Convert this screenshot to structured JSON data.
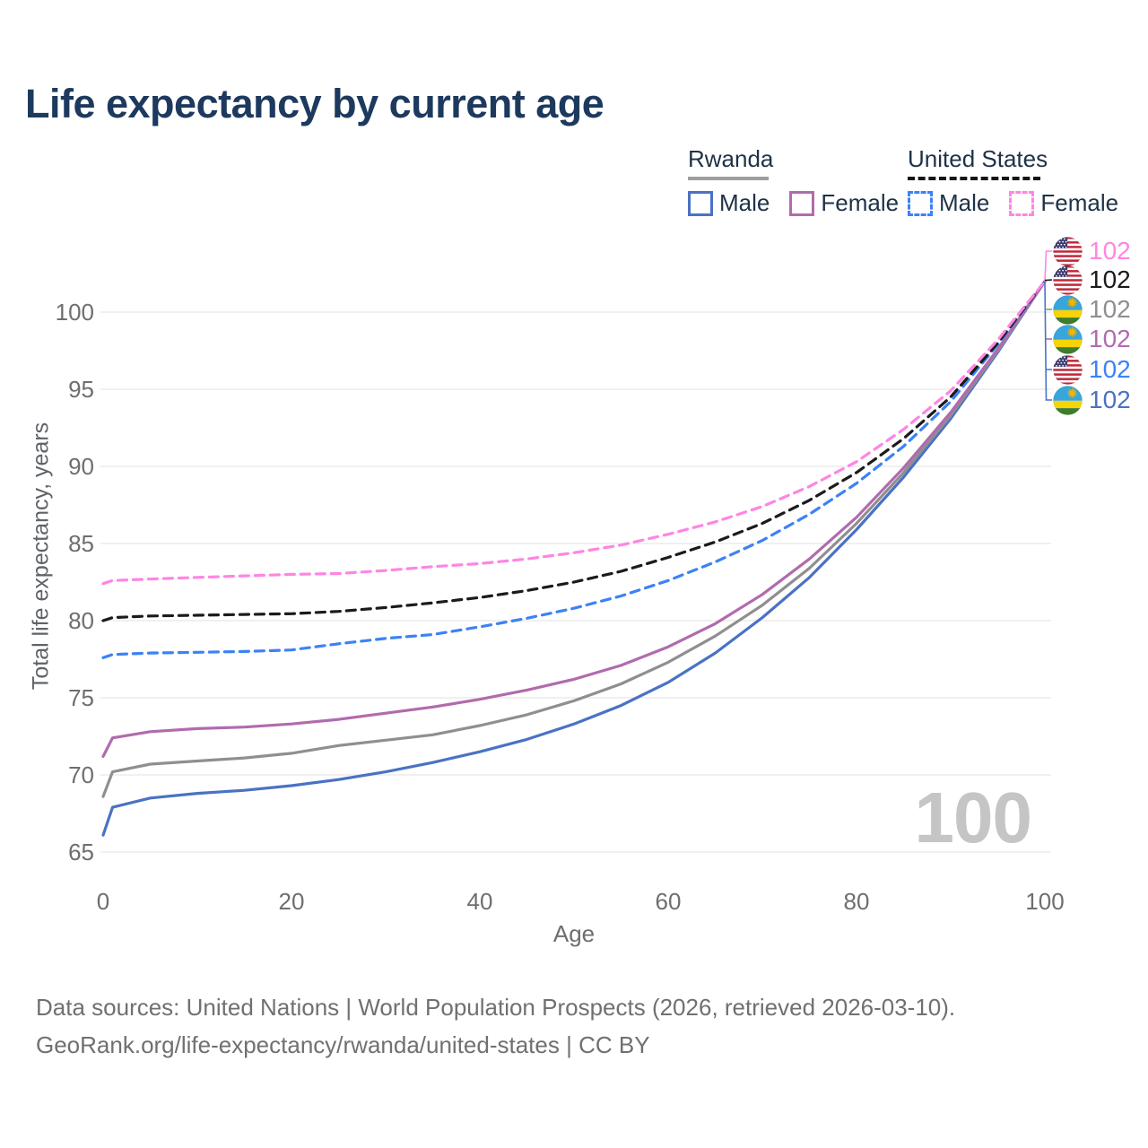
{
  "title": "Life expectancy by current age",
  "legend": {
    "groups": [
      {
        "name": "Rwanda",
        "underline_color": "#9e9e9e",
        "underline_style": "solid",
        "items": [
          {
            "label": "Male",
            "series": "rw_male"
          },
          {
            "label": "Female",
            "series": "rw_female"
          }
        ]
      },
      {
        "name": "United States",
        "underline_color": "#161616",
        "underline_style": "dashed",
        "items": [
          {
            "label": "Male",
            "series": "us_male"
          },
          {
            "label": "Female",
            "series": "us_female"
          }
        ]
      }
    ]
  },
  "watermark_age": "100",
  "chart_data": {
    "type": "line",
    "title": "Life expectancy by current age",
    "xlabel": "Age",
    "ylabel": "Total life expectancy, years",
    "x_ticks": [
      0,
      20,
      40,
      60,
      80,
      100
    ],
    "y_ticks": [
      65,
      70,
      75,
      80,
      85,
      90,
      95,
      100
    ],
    "xlim": [
      0,
      100
    ],
    "ylim": [
      63.5,
      103.5
    ],
    "grid": "horizontal-only",
    "legend_position": "top-right",
    "ages": [
      0,
      1,
      5,
      10,
      15,
      20,
      25,
      30,
      35,
      40,
      45,
      50,
      55,
      60,
      65,
      70,
      75,
      80,
      85,
      90,
      95,
      100
    ],
    "series": [
      {
        "id": "rw_male",
        "name": "Rwanda Male",
        "country": "Rwanda",
        "sex": "Male",
        "color": "#4a72c4",
        "dashed": false,
        "values": [
          66.1,
          67.9,
          68.5,
          68.8,
          69.0,
          69.3,
          69.7,
          70.2,
          70.8,
          71.5,
          72.3,
          73.3,
          74.5,
          76.0,
          77.9,
          80.2,
          82.8,
          85.9,
          89.3,
          93.1,
          97.4,
          102
        ]
      },
      {
        "id": "rw_total",
        "name": "Rwanda Both sexes",
        "country": "Rwanda",
        "sex": "Both",
        "color": "#8f8f8f",
        "dashed": false,
        "values": [
          68.6,
          70.2,
          70.7,
          70.9,
          71.1,
          71.4,
          71.9,
          72.25,
          72.6,
          73.2,
          73.9,
          74.8,
          75.9,
          77.3,
          79.0,
          81.0,
          83.4,
          86.3,
          89.6,
          93.3,
          97.5,
          102
        ]
      },
      {
        "id": "rw_female",
        "name": "Rwanda Female",
        "country": "Rwanda",
        "sex": "Female",
        "color": "#b16bad",
        "dashed": false,
        "values": [
          71.2,
          72.4,
          72.8,
          73.0,
          73.1,
          73.3,
          73.6,
          74.0,
          74.4,
          74.9,
          75.5,
          76.2,
          77.1,
          78.3,
          79.8,
          81.7,
          84.0,
          86.7,
          89.9,
          93.5,
          97.6,
          102
        ]
      },
      {
        "id": "us_male",
        "name": "United States Male",
        "country": "United States",
        "sex": "Male",
        "color": "#3c82f6",
        "dashed": true,
        "values": [
          77.6,
          77.8,
          77.9,
          77.95,
          78.0,
          78.1,
          78.5,
          78.85,
          79.1,
          79.6,
          80.15,
          80.8,
          81.6,
          82.6,
          83.8,
          85.2,
          86.9,
          88.9,
          91.3,
          94.2,
          97.9,
          102
        ]
      },
      {
        "id": "us_total",
        "name": "United States Both sexes",
        "country": "United States",
        "sex": "Both",
        "color": "#1b1b1b",
        "dashed": true,
        "values": [
          80.0,
          80.2,
          80.3,
          80.35,
          80.4,
          80.45,
          80.6,
          80.85,
          81.15,
          81.5,
          81.95,
          82.5,
          83.2,
          84.1,
          85.1,
          86.3,
          87.8,
          89.6,
          91.8,
          94.5,
          98.0,
          102
        ]
      },
      {
        "id": "us_female",
        "name": "United States Female",
        "country": "United States",
        "sex": "Female",
        "color": "#ff85e3",
        "dashed": true,
        "values": [
          82.4,
          82.6,
          82.7,
          82.8,
          82.9,
          83.0,
          83.05,
          83.25,
          83.5,
          83.7,
          84.0,
          84.4,
          84.9,
          85.6,
          86.4,
          87.4,
          88.7,
          90.3,
          92.4,
          94.9,
          98.2,
          102
        ]
      }
    ],
    "end_labels": [
      {
        "flag": "us",
        "series": "us_female",
        "value": "102"
      },
      {
        "flag": "us",
        "series": "us_total",
        "value": "102"
      },
      {
        "flag": "rw",
        "series": "rw_total",
        "value": "102"
      },
      {
        "flag": "rw",
        "series": "rw_female",
        "value": "102"
      },
      {
        "flag": "us",
        "series": "us_male",
        "value": "102"
      },
      {
        "flag": "rw",
        "series": "rw_male",
        "value": "102"
      }
    ]
  },
  "footer": {
    "line1": "Data sources: United Nations | World Population Prospects (2026, retrieved 2026-03-10).",
    "line2": "GeoRank.org/life-expectancy/rwanda/united-states | CC BY"
  }
}
